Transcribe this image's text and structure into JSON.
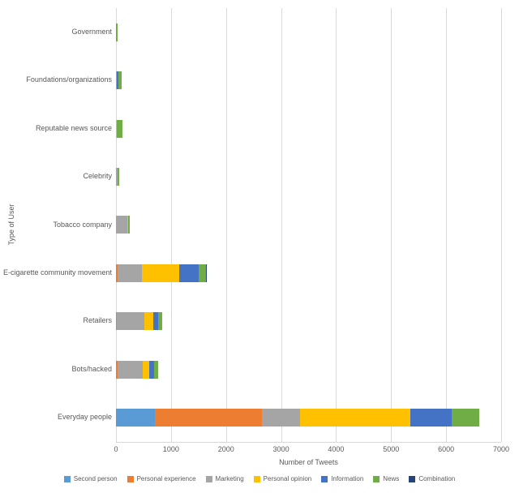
{
  "chart_data": {
    "type": "bar",
    "orientation": "horizontal",
    "stacked": true,
    "title": "",
    "xlabel": "Number of Tweets",
    "ylabel": "Type of User",
    "xlim": [
      0,
      7000
    ],
    "xticks": [
      0,
      1000,
      2000,
      3000,
      4000,
      5000,
      6000,
      7000
    ],
    "grid": "vertical",
    "legend_position": "bottom",
    "categories": [
      "Government",
      "Foundations/organizations",
      "Reputable news source",
      "Celebrity",
      "Tobacco company",
      "E-cigarette community movement",
      "Retailers",
      "Bots/hacked",
      "Everyday people"
    ],
    "series": [
      {
        "name": "Second person",
        "color": "#5B9BD5",
        "values": [
          0,
          0,
          0,
          0,
          0,
          0,
          0,
          0,
          700
        ]
      },
      {
        "name": "Personal experience",
        "color": "#ED7D31",
        "values": [
          0,
          0,
          0,
          0,
          0,
          30,
          20,
          30,
          1950
        ]
      },
      {
        "name": "Marketing",
        "color": "#A5A5A5",
        "values": [
          0,
          10,
          0,
          30,
          200,
          440,
          500,
          450,
          700
        ]
      },
      {
        "name": "Personal opinion",
        "color": "#FFC000",
        "values": [
          0,
          0,
          10,
          0,
          20,
          680,
          160,
          130,
          2000
        ]
      },
      {
        "name": "Information",
        "color": "#4472C4",
        "values": [
          0,
          40,
          10,
          0,
          0,
          350,
          80,
          90,
          750
        ]
      },
      {
        "name": "News",
        "color": "#70AD47",
        "values": [
          30,
          60,
          100,
          30,
          30,
          130,
          80,
          60,
          500
        ]
      },
      {
        "name": "Combination",
        "color": "#264478",
        "values": [
          0,
          0,
          0,
          0,
          0,
          20,
          0,
          0,
          0
        ]
      }
    ],
    "colors": {
      "gridline": "#d9d9d9",
      "axis_text": "#595959"
    }
  }
}
